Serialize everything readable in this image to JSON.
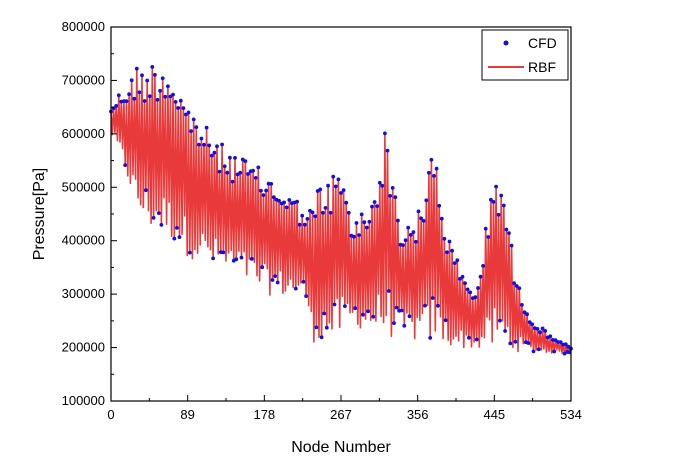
{
  "chart_data": {
    "type": "line",
    "title": "",
    "xlabel": "Node Number",
    "ylabel": "Pressure[Pa]",
    "xlim": [
      0,
      534
    ],
    "ylim": [
      100000,
      800000
    ],
    "x_ticks": [
      "0",
      "89",
      "178",
      "267",
      "356",
      "445",
      "534"
    ],
    "y_ticks": [
      "100000",
      "200000",
      "300000",
      "400000",
      "500000",
      "600000",
      "700000",
      "800000"
    ],
    "grid": false,
    "legend_position": "top-right",
    "legend": [
      {
        "label": "CFD",
        "style": "dots",
        "color": "#1010e0"
      },
      {
        "label": "RBF",
        "style": "line",
        "color": "#e83a3a"
      }
    ],
    "envelope_description": "Values oscillate node-to-node between an upper and lower envelope; RBF line closely follows CFD points.",
    "upper_envelope": [
      [
        0,
        650000
      ],
      [
        10,
        680000
      ],
      [
        20,
        700000
      ],
      [
        30,
        730000
      ],
      [
        40,
        730000
      ],
      [
        55,
        745000
      ],
      [
        65,
        735000
      ],
      [
        75,
        715000
      ],
      [
        89,
        660000
      ],
      [
        100,
        640000
      ],
      [
        110,
        615000
      ],
      [
        125,
        585000
      ],
      [
        140,
        570000
      ],
      [
        160,
        550000
      ],
      [
        178,
        530000
      ],
      [
        195,
        510000
      ],
      [
        215,
        480000
      ],
      [
        230,
        460000
      ],
      [
        240,
        500000
      ],
      [
        255,
        525000
      ],
      [
        267,
        535000
      ],
      [
        280,
        440000
      ],
      [
        300,
        470000
      ],
      [
        320,
        620000
      ],
      [
        335,
        430000
      ],
      [
        360,
        460000
      ],
      [
        375,
        600000
      ],
      [
        390,
        420000
      ],
      [
        410,
        330000
      ],
      [
        425,
        310000
      ],
      [
        445,
        540000
      ],
      [
        455,
        520000
      ],
      [
        470,
        330000
      ],
      [
        490,
        250000
      ],
      [
        510,
        225000
      ],
      [
        534,
        200000
      ]
    ],
    "lower_envelope": [
      [
        0,
        600000
      ],
      [
        10,
        560000
      ],
      [
        20,
        510000
      ],
      [
        30,
        450000
      ],
      [
        45,
        420000
      ],
      [
        60,
        410000
      ],
      [
        75,
        395000
      ],
      [
        89,
        370000
      ],
      [
        110,
        355000
      ],
      [
        130,
        340000
      ],
      [
        150,
        330000
      ],
      [
        165,
        315000
      ],
      [
        178,
        300000
      ],
      [
        195,
        295000
      ],
      [
        215,
        295000
      ],
      [
        228,
        280000
      ],
      [
        232,
        210000
      ],
      [
        260,
        210000
      ],
      [
        280,
        240000
      ],
      [
        300,
        230000
      ],
      [
        320,
        220000
      ],
      [
        340,
        215000
      ],
      [
        360,
        210000
      ],
      [
        380,
        205000
      ],
      [
        400,
        200000
      ],
      [
        420,
        198000
      ],
      [
        445,
        195000
      ],
      [
        470,
        193000
      ],
      [
        500,
        190000
      ],
      [
        534,
        188000
      ]
    ]
  }
}
